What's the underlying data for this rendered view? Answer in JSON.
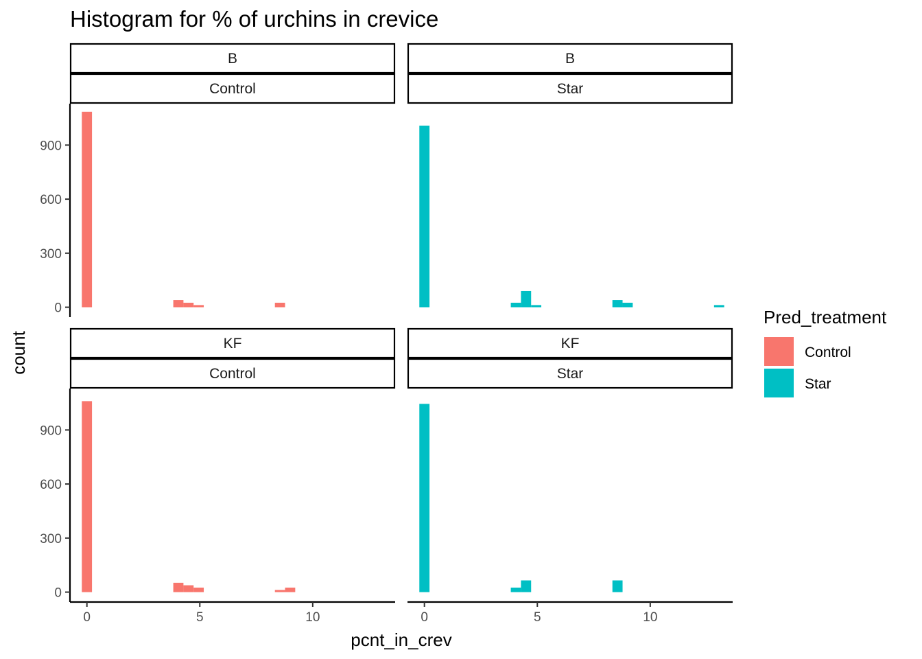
{
  "chart_data": {
    "type": "bar",
    "title": "Histogram for % of urchins in crevice",
    "xlabel": "pcnt_in_crev",
    "ylabel": "count",
    "xlim": [
      -0.75,
      13.65
    ],
    "ylim": [
      -55,
      1130
    ],
    "x_ticks": [
      0,
      5,
      10
    ],
    "x_tick_labels": [
      "0",
      "5",
      "10"
    ],
    "y_ticks": [
      0,
      300,
      600,
      900
    ],
    "y_tick_labels": [
      "0",
      "300",
      "600",
      "900"
    ],
    "bin_width": 0.45,
    "grid": false,
    "colors": {
      "Control": "#F8766D",
      "Star": "#00BFC4"
    },
    "legend": {
      "title": "Pred_treatment",
      "position": "right",
      "items": [
        {
          "label": "Control",
          "color": "#F8766D"
        },
        {
          "label": "Star",
          "color": "#00BFC4"
        }
      ]
    },
    "panels": [
      {
        "row": 0,
        "col": 0,
        "strip_top": "B",
        "strip_bottom": "Control",
        "series": "Control",
        "bins": [
          {
            "x": 0,
            "count": 1085
          },
          {
            "x": 4.05,
            "count": 40
          },
          {
            "x": 4.5,
            "count": 25
          },
          {
            "x": 4.95,
            "count": 12
          },
          {
            "x": 8.55,
            "count": 25
          }
        ]
      },
      {
        "row": 0,
        "col": 1,
        "strip_top": "B",
        "strip_bottom": "Star",
        "series": "Star",
        "bins": [
          {
            "x": 0,
            "count": 1008
          },
          {
            "x": 4.05,
            "count": 25
          },
          {
            "x": 4.5,
            "count": 90
          },
          {
            "x": 4.95,
            "count": 12
          },
          {
            "x": 8.55,
            "count": 40
          },
          {
            "x": 9.0,
            "count": 25
          },
          {
            "x": 13.05,
            "count": 12
          }
        ]
      },
      {
        "row": 1,
        "col": 0,
        "strip_top": "KF",
        "strip_bottom": "Control",
        "series": "Control",
        "bins": [
          {
            "x": 0,
            "count": 1060
          },
          {
            "x": 4.05,
            "count": 52
          },
          {
            "x": 4.5,
            "count": 38
          },
          {
            "x": 4.95,
            "count": 25
          },
          {
            "x": 8.55,
            "count": 12
          },
          {
            "x": 9.0,
            "count": 25
          }
        ]
      },
      {
        "row": 1,
        "col": 1,
        "strip_top": "KF",
        "strip_bottom": "Star",
        "series": "Star",
        "bins": [
          {
            "x": 0,
            "count": 1045
          },
          {
            "x": 4.05,
            "count": 25
          },
          {
            "x": 4.5,
            "count": 65
          },
          {
            "x": 8.55,
            "count": 65
          }
        ]
      }
    ]
  }
}
